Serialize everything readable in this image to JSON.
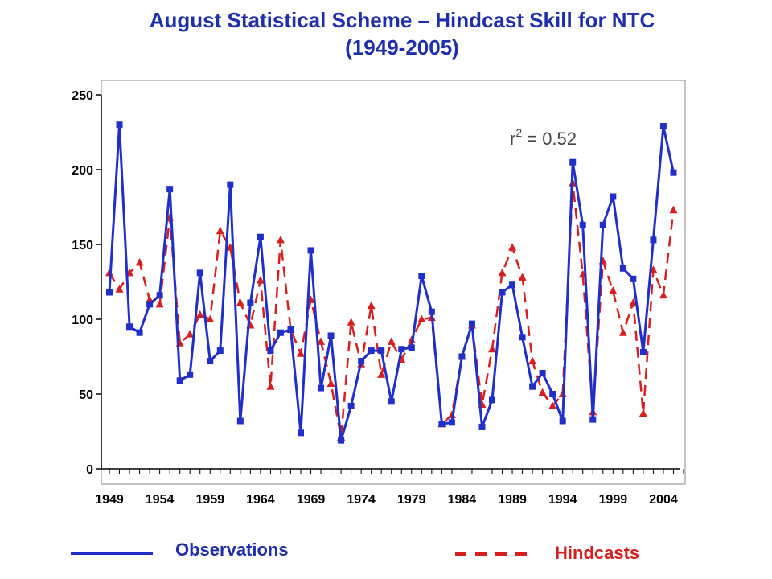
{
  "chart_data": {
    "type": "line",
    "title_line1": "August Statistical Scheme – Hindcast Skill for NTC",
    "title_line2": "(1949-2005)",
    "xlabel": "",
    "ylabel": "",
    "xlim": [
      1949,
      2006
    ],
    "ylim": [
      0,
      250
    ],
    "y_ticks": [
      "0",
      "50",
      "100",
      "150",
      "200",
      "250"
    ],
    "x_ticks": [
      "1949",
      "1954",
      "1959",
      "1964",
      "1969",
      "1974",
      "1979",
      "1984",
      "1989",
      "1994",
      "1999",
      "2004"
    ],
    "annotation_prefix": "r",
    "annotation_exp": "2",
    "annotation_value": " = 0.52",
    "grid": false,
    "x": [
      1949,
      1950,
      1951,
      1952,
      1953,
      1954,
      1955,
      1956,
      1957,
      1958,
      1959,
      1960,
      1961,
      1962,
      1963,
      1964,
      1965,
      1966,
      1967,
      1968,
      1969,
      1970,
      1971,
      1972,
      1973,
      1974,
      1975,
      1976,
      1977,
      1978,
      1979,
      1980,
      1981,
      1982,
      1983,
      1984,
      1985,
      1986,
      1987,
      1988,
      1989,
      1990,
      1991,
      1992,
      1993,
      1994,
      1995,
      1996,
      1997,
      1998,
      1999,
      2000,
      2001,
      2002,
      2003,
      2004,
      2005
    ],
    "series": [
      {
        "name": "Observations",
        "color": "#1f2fc8",
        "style": "solid",
        "marker": "square",
        "values": [
          118,
          230,
          95,
          91,
          110,
          116,
          187,
          59,
          63,
          131,
          72,
          79,
          190,
          32,
          111,
          155,
          79,
          91,
          93,
          24,
          146,
          54,
          89,
          19,
          42,
          72,
          79,
          79,
          45,
          80,
          81,
          129,
          105,
          30,
          31,
          75,
          97,
          28,
          46,
          118,
          123,
          88,
          55,
          64,
          50,
          32,
          205,
          163,
          33,
          163,
          182,
          134,
          127,
          78,
          153,
          229,
          198
        ]
      },
      {
        "name": "Hindcasts",
        "color": "#d62020",
        "style": "dashed",
        "marker": "triangle",
        "values": [
          131,
          120,
          131,
          138,
          113,
          110,
          168,
          84,
          90,
          103,
          100,
          159,
          148,
          111,
          96,
          126,
          55,
          153,
          93,
          77,
          113,
          85,
          57,
          21,
          98,
          70,
          109,
          63,
          85,
          73,
          86,
          100,
          101,
          30,
          36,
          75,
          96,
          43,
          80,
          131,
          148,
          128,
          72,
          51,
          42,
          50,
          191,
          130,
          38,
          139,
          119,
          91,
          111,
          37,
          133,
          116,
          173
        ]
      }
    ],
    "legend": {
      "position": "bottom",
      "observations_label": "Observations",
      "hindcasts_label": "Hindcasts"
    }
  }
}
